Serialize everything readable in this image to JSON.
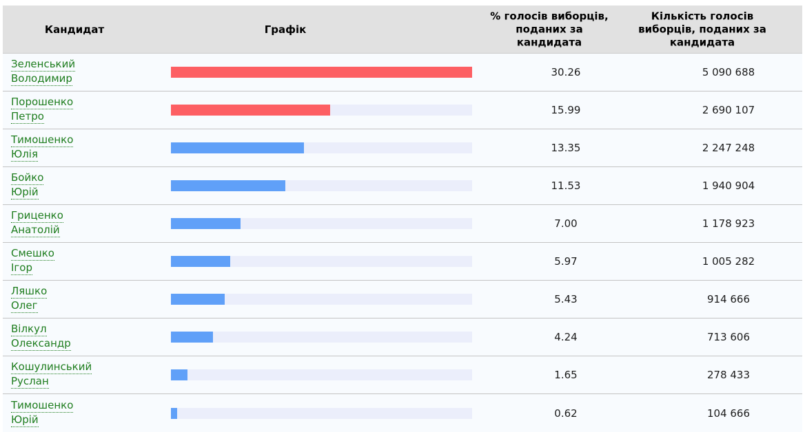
{
  "colors": {
    "header_bg": "#e1e1e1",
    "row_bg": "#f8fbfe",
    "bar_track": "#ebeefb",
    "bar_red": "#fd5f63",
    "bar_blue": "#60a0f8",
    "link_green": "#1e7d1e",
    "separator": "#c3c3c3"
  },
  "table": {
    "headers": {
      "candidate": "Кандидат",
      "graph": "Графік",
      "percent_lines": [
        "% голосів виборців,",
        "поданих за",
        "кандидата"
      ],
      "votes_lines": [
        "Кількість голосів",
        "виборців, поданих за",
        "кандидата"
      ]
    },
    "rows": [
      {
        "name_lines": [
          "Зеленський",
          "Володимир"
        ],
        "percent": "30.26",
        "votes": "5 090 688",
        "bar": {
          "width_pct": 100,
          "color": "bar_red"
        }
      },
      {
        "name_lines": [
          "Порошенко",
          "Петро"
        ],
        "percent": "15.99",
        "votes": "2 690 107",
        "bar": {
          "width_pct": 52.84,
          "color": "bar_red"
        }
      },
      {
        "name_lines": [
          "Тимошенко",
          "Юлія"
        ],
        "percent": "13.35",
        "votes": "2 247 248",
        "bar": {
          "width_pct": 44.12,
          "color": "bar_blue"
        }
      },
      {
        "name_lines": [
          "Бойко",
          "Юрій"
        ],
        "percent": "11.53",
        "votes": "1 940 904",
        "bar": {
          "width_pct": 38.1,
          "color": "bar_blue"
        }
      },
      {
        "name_lines": [
          "Гриценко",
          "Анатолій"
        ],
        "percent": "7.00",
        "votes": "1 178 923",
        "bar": {
          "width_pct": 23.13,
          "color": "bar_blue"
        }
      },
      {
        "name_lines": [
          "Смешко",
          "Ігор"
        ],
        "percent": "5.97",
        "votes": "1 005 282",
        "bar": {
          "width_pct": 19.73,
          "color": "bar_blue"
        }
      },
      {
        "name_lines": [
          "Ляшко",
          "Олег"
        ],
        "percent": "5.43",
        "votes": "914 666",
        "bar": {
          "width_pct": 17.95,
          "color": "bar_blue"
        }
      },
      {
        "name_lines": [
          "Вілкул",
          "Олександр"
        ],
        "percent": "4.24",
        "votes": "713 606",
        "bar": {
          "width_pct": 14.01,
          "color": "bar_blue"
        }
      },
      {
        "name_lines": [
          "Кошулинський",
          "Руслан"
        ],
        "percent": "1.65",
        "votes": "278 433",
        "bar": {
          "width_pct": 5.45,
          "color": "bar_blue"
        }
      },
      {
        "name_lines": [
          "Тимошенко",
          "Юрій"
        ],
        "percent": "0.62",
        "votes": "104 666",
        "bar": {
          "width_pct": 2.05,
          "color": "bar_blue"
        }
      }
    ]
  },
  "chart_data": {
    "type": "bar",
    "orientation": "horizontal",
    "categories": [
      "Зеленський Володимир",
      "Порошенко Петро",
      "Тимошенко Юлія",
      "Бойко Юрій",
      "Гриценко Анатолій",
      "Смешко Ігор",
      "Ляшко Олег",
      "Вілкул Олександр",
      "Кошулинський Руслан",
      "Тимошенко Юрій"
    ],
    "series": [
      {
        "name": "% голосів виборців, поданих за кандидата",
        "values": [
          30.26,
          15.99,
          13.35,
          11.53,
          7.0,
          5.97,
          5.43,
          4.24,
          1.65,
          0.62
        ]
      },
      {
        "name": "Кількість голосів виборців, поданих за кандидата",
        "values": [
          5090688,
          2690107,
          2247248,
          1940904,
          1178923,
          1005282,
          914666,
          713606,
          278433,
          104666
        ]
      }
    ],
    "bar_scale_max_percent": 30.26,
    "bar_colors_by_row": [
      "red",
      "red",
      "blue",
      "blue",
      "blue",
      "blue",
      "blue",
      "blue",
      "blue",
      "blue"
    ],
    "title": "",
    "xlabel": "",
    "ylabel": "",
    "grid": false,
    "legend_position": "none"
  }
}
